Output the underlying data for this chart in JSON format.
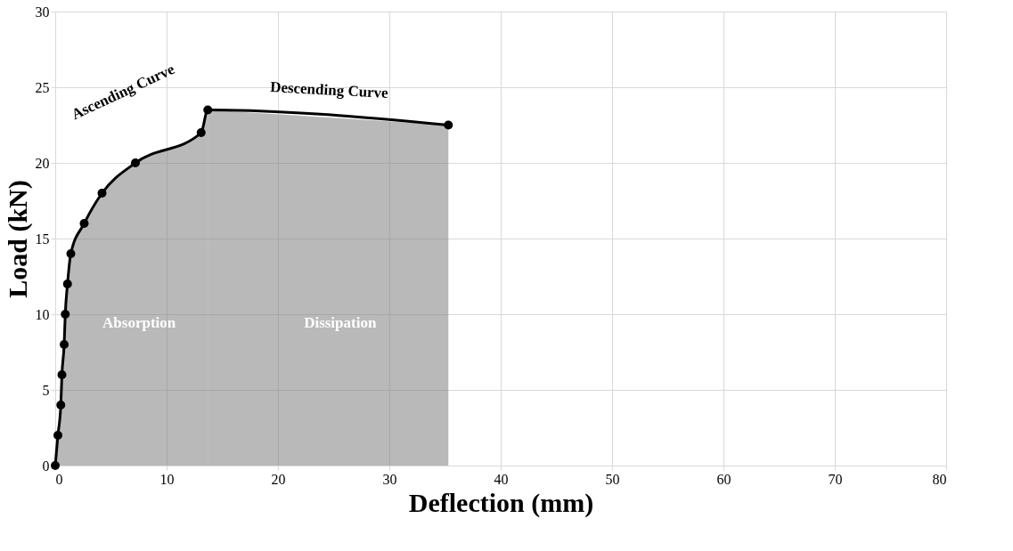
{
  "chart_data": {
    "type": "line",
    "xlabel": "Deflection (mm)",
    "ylabel": "Load (kN)",
    "xlim": [
      0,
      80
    ],
    "xticks": [
      0,
      10,
      20,
      30,
      40,
      50,
      60,
      70,
      80
    ],
    "ylim": [
      0,
      30
    ],
    "yticks": [
      0,
      5,
      10,
      15,
      20,
      25,
      30
    ],
    "grid": true,
    "line_style": "solid",
    "series": [
      {
        "type": "area",
        "name": "Absorption",
        "color": "#7f7f7f",
        "x": [
          0,
          0.24,
          0.5,
          0.6,
          0.8,
          0.9,
          1.1,
          1.4,
          2.6,
          4.2,
          7.2,
          13.1,
          13.7
        ],
        "values": [
          0,
          2,
          4,
          6,
          8,
          10,
          12,
          14,
          16,
          18,
          20,
          22,
          23.5
        ]
      },
      {
        "type": "area",
        "name": "Dissipation",
        "color": "#7f7f7f",
        "x": [
          13.7,
          35.3
        ],
        "values": [
          23.5,
          22.5
        ]
      },
      {
        "color": "#000000",
        "marker": "circle",
        "x": [
          0,
          0.24,
          0.5,
          0.6,
          0.8,
          0.9,
          1.1,
          1.4,
          2.6,
          4.2,
          7.2,
          13.1,
          13.7,
          35.3
        ],
        "values": [
          0,
          2,
          4,
          6,
          8,
          10,
          12,
          14,
          16,
          18,
          20,
          22,
          23.5,
          22.5
        ]
      }
    ],
    "annotations": [
      "Ascending Curve",
      "Descending Curve"
    ]
  }
}
